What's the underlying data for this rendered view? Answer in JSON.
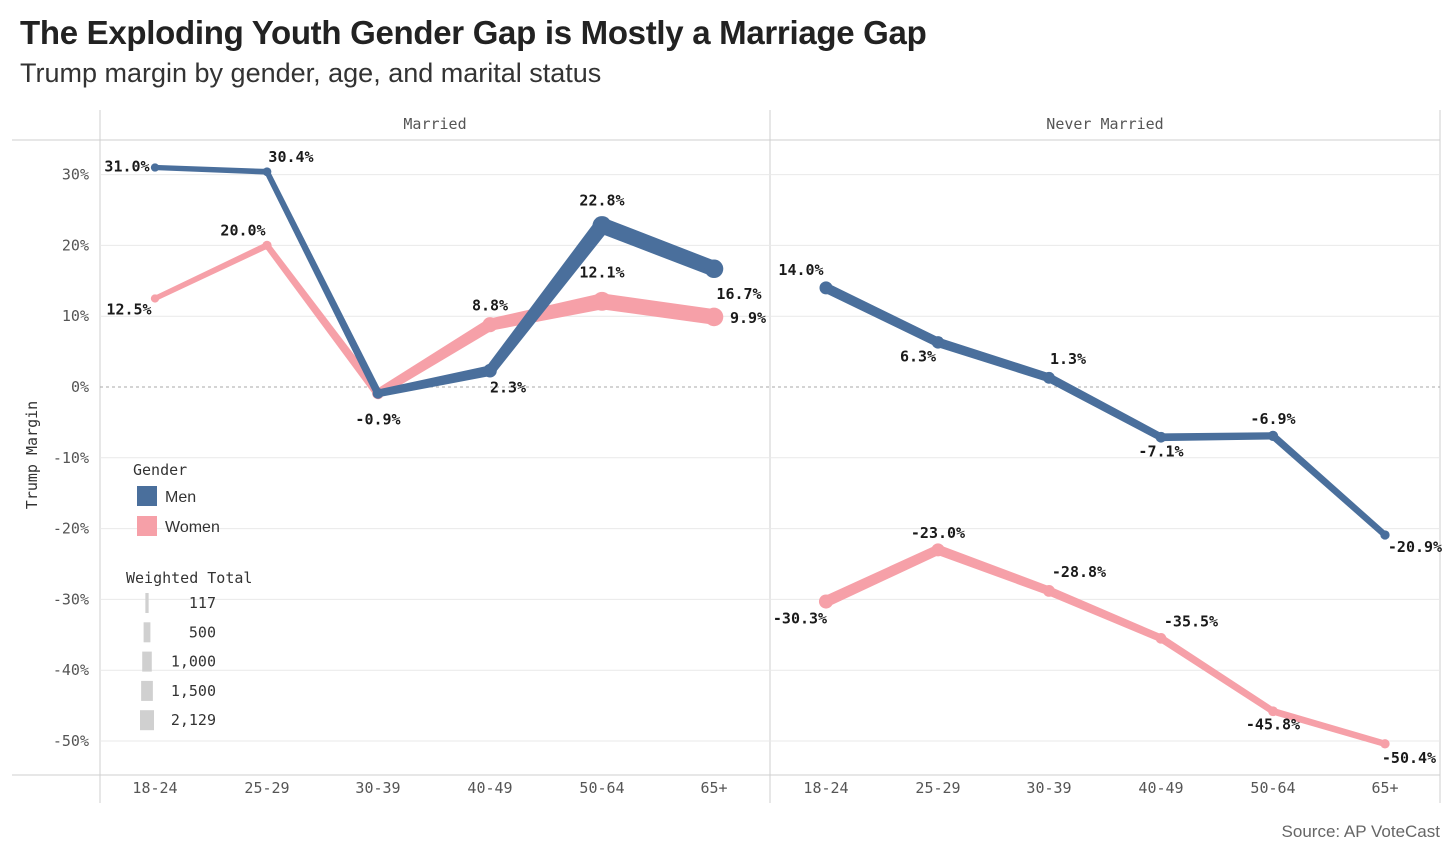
{
  "header": {
    "title": "The Exploding Youth Gender Gap is Mostly a Marriage Gap",
    "subtitle": "Trump margin by gender, age, and marital status"
  },
  "footer": {
    "source": "Source: AP VoteCast"
  },
  "legend": {
    "gender_title": "Gender",
    "men_label": "Men",
    "women_label": "Women",
    "size_title": "Weighted Total",
    "sizes": [
      "117",
      "500",
      "1,000",
      "1,500",
      "2,129"
    ],
    "size_values": [
      117,
      500,
      1000,
      1500,
      2129
    ]
  },
  "colors": {
    "men": "#4a6f9c",
    "women": "#f6a0a8",
    "grid": "#e9e9e9",
    "zero": "#aaaaaa"
  },
  "chart_data": {
    "type": "line",
    "title": "The Exploding Youth Gender Gap is Mostly a Marriage Gap",
    "ylabel": "Trump Margin",
    "ylim": [
      -55,
      35
    ],
    "yticks": [
      30,
      20,
      10,
      0,
      -10,
      -20,
      -30,
      -40,
      -50
    ],
    "ytick_labels": [
      "30%",
      "20%",
      "10%",
      "0%",
      "-10%",
      "-20%",
      "-30%",
      "-40%",
      "-50%"
    ],
    "categories": [
      "18-24",
      "25-29",
      "30-39",
      "40-49",
      "50-64",
      "65+"
    ],
    "panels": [
      {
        "name": "Married",
        "series": [
          {
            "name": "Men",
            "values": [
              31.0,
              30.4,
              -0.9,
              2.3,
              22.8,
              16.7
            ],
            "labels": [
              "31.0%",
              "30.4%",
              "-0.9%",
              "2.3%",
              "22.8%",
              "16.7%"
            ],
            "weights": [
              117,
              150,
              350,
              800,
              2129,
              2000
            ]
          },
          {
            "name": "Women",
            "values": [
              12.5,
              20.0,
              -0.9,
              8.8,
              12.1,
              9.9
            ],
            "labels": [
              "12.5%",
              "20.0%",
              "",
              "8.8%",
              "12.1%",
              "9.9%"
            ],
            "weights": [
              117,
              200,
              500,
              1100,
              2100,
              2000
            ]
          }
        ]
      },
      {
        "name": "Never Married",
        "series": [
          {
            "name": "Men",
            "values": [
              14.0,
              6.3,
              1.3,
              -7.1,
              -6.9,
              -20.9
            ],
            "labels": [
              "14.0%",
              "6.3%",
              "1.3%",
              "-7.1%",
              "-6.9%",
              "-20.9%"
            ],
            "weights": [
              700,
              600,
              500,
              350,
              300,
              200
            ]
          },
          {
            "name": "Women",
            "values": [
              -30.3,
              -23.0,
              -28.8,
              -35.5,
              -45.8,
              -50.4
            ],
            "labels": [
              "-30.3%",
              "-23.0%",
              "-28.8%",
              "-35.5%",
              "-45.8%",
              "-50.4%"
            ],
            "weights": [
              900,
              700,
              500,
              350,
              250,
              200
            ]
          }
        ]
      }
    ]
  }
}
